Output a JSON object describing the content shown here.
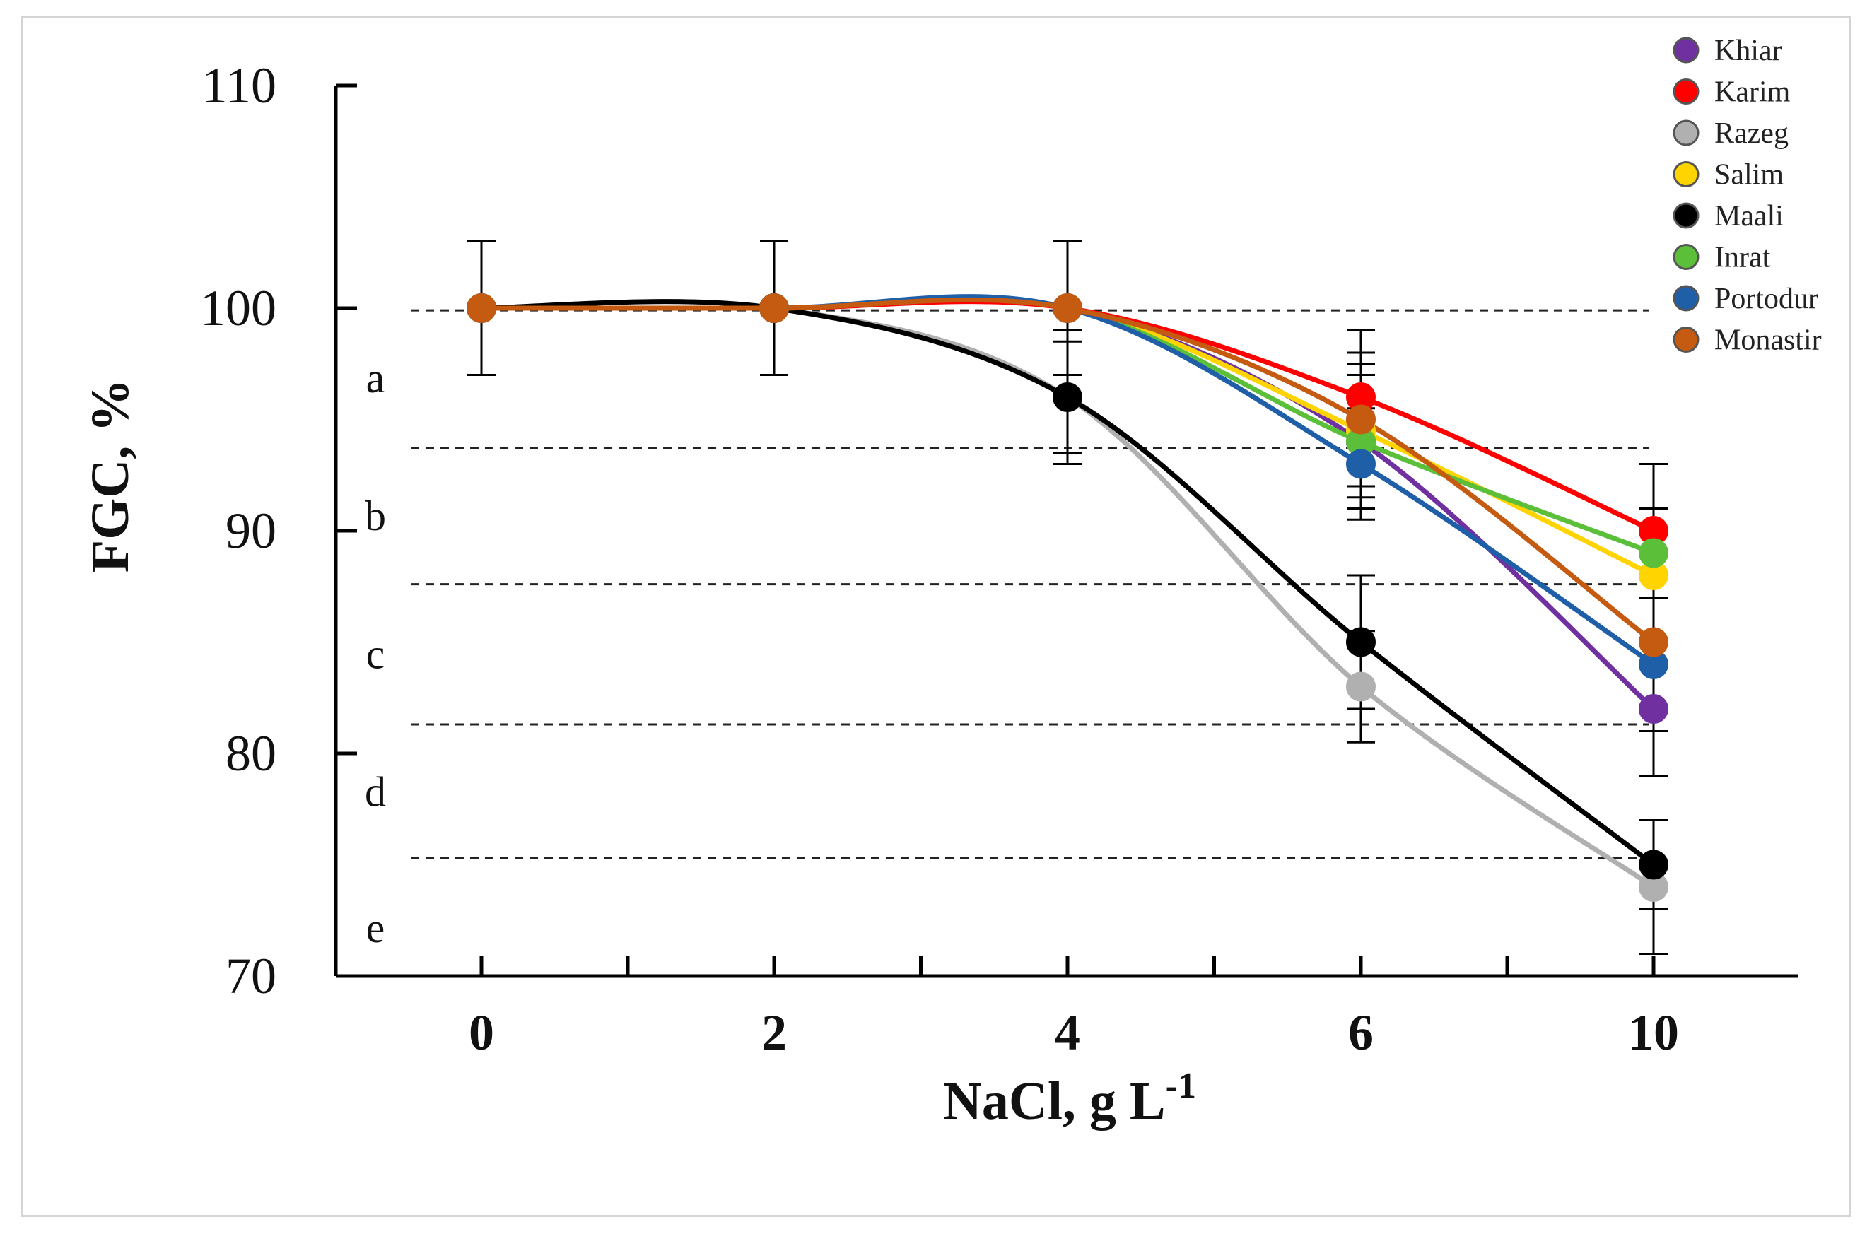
{
  "chart_data": {
    "type": "line",
    "title": "",
    "xlabel": "NaCl, g L",
    "xlabel_sup": "-1",
    "ylabel": "FGC, %",
    "categories": [
      "0",
      "2",
      "4",
      "6",
      "10"
    ],
    "ylim": [
      70,
      110
    ],
    "yticks": [
      "70",
      "80",
      "90",
      "100",
      "110"
    ],
    "grid": false,
    "legend_position": "top-right",
    "series": [
      {
        "name": "Khiar",
        "color": "#7030a0",
        "values": [
          100,
          100,
          100,
          94,
          82
        ],
        "errors": [
          3,
          3,
          3,
          3,
          3
        ]
      },
      {
        "name": "Karim",
        "color": "#ff0000",
        "values": [
          100,
          100,
          100,
          96,
          90
        ],
        "errors": [
          3,
          3,
          3,
          3,
          3
        ]
      },
      {
        "name": "Razeg",
        "color": "#b0b0b0",
        "values": [
          100,
          100,
          96,
          83,
          74
        ],
        "errors": [
          3,
          3,
          3,
          2.5,
          3
        ]
      },
      {
        "name": "Salim",
        "color": "#ffd400",
        "values": [
          100,
          100,
          100,
          94.5,
          88
        ],
        "errors": [
          3,
          3,
          3,
          3,
          3
        ]
      },
      {
        "name": "Maali",
        "color": "#000000",
        "values": [
          100,
          100,
          96,
          85,
          75
        ],
        "errors": [
          3,
          3,
          2.5,
          3,
          2
        ]
      },
      {
        "name": "Inrat",
        "color": "#5cbf3a",
        "values": [
          100,
          100,
          100,
          94,
          89
        ],
        "errors": [
          3,
          3,
          3,
          3,
          2
        ]
      },
      {
        "name": "Portodur",
        "color": "#1f5fa8",
        "values": [
          100,
          100,
          100,
          93,
          84
        ],
        "errors": [
          3,
          3,
          3,
          2.5,
          3
        ]
      },
      {
        "name": "Monastir",
        "color": "#c55a11",
        "values": [
          100,
          100,
          100,
          95,
          85
        ],
        "errors": [
          3,
          3,
          3,
          3,
          3
        ]
      }
    ],
    "group_lines": [
      99.9,
      93.7,
      87.6,
      81.3,
      75.3
    ],
    "group_letters": [
      {
        "label": "a",
        "y": 96.8
      },
      {
        "label": "b",
        "y": 90.6
      },
      {
        "label": "c",
        "y": 84.4
      },
      {
        "label": "d",
        "y": 78.2
      },
      {
        "label": "e",
        "y": 72.1
      }
    ]
  }
}
